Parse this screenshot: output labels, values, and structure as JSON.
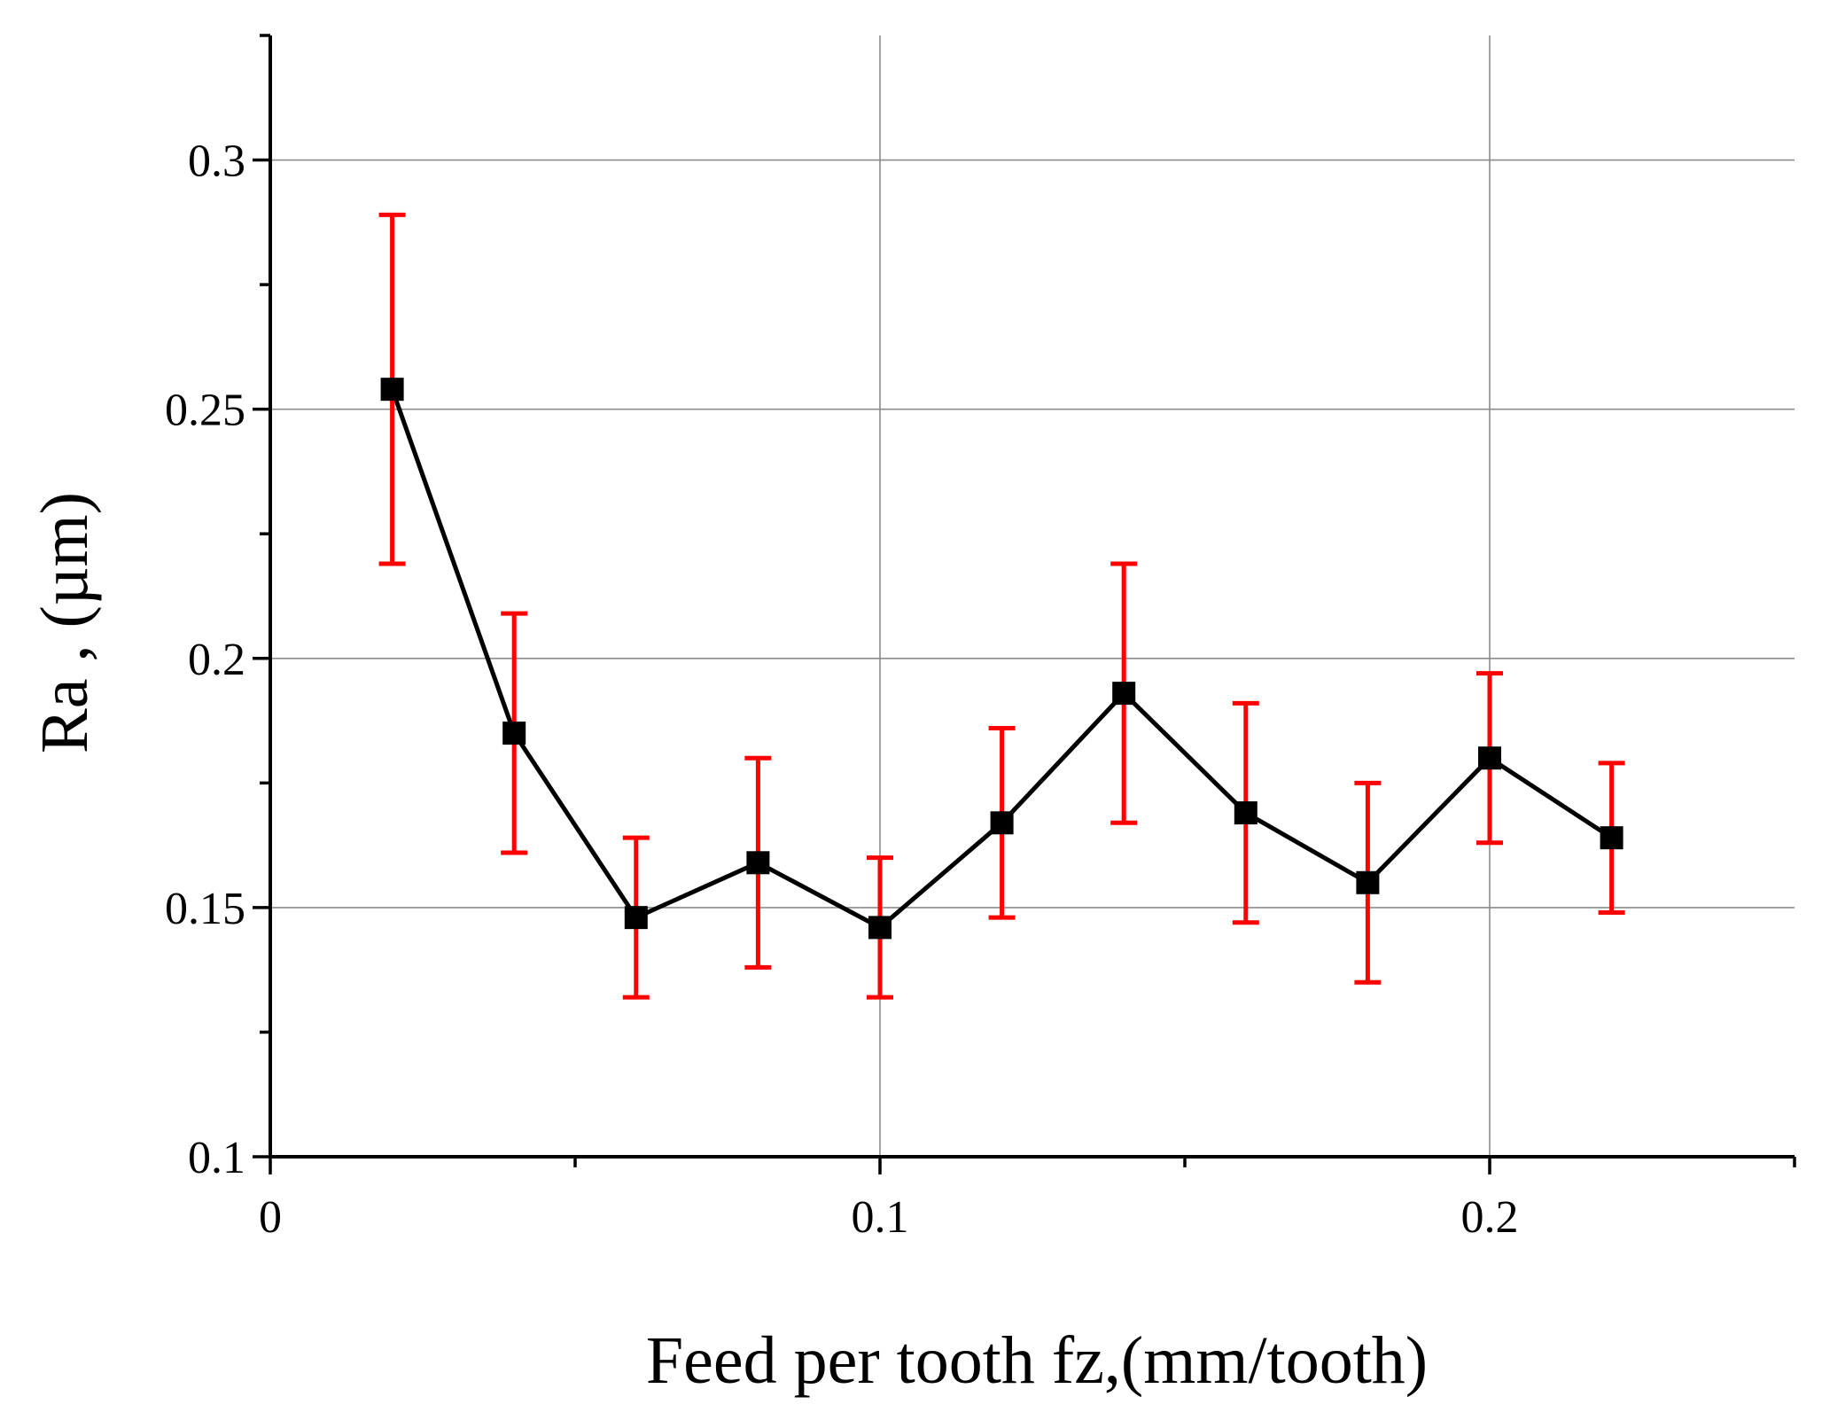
{
  "chart_data": {
    "type": "line",
    "title": "",
    "xlabel": "Feed per tooth fz,(mm/tooth)",
    "ylabel": "Ra , (µm)",
    "xlim": [
      0,
      0.25
    ],
    "ylim": [
      0.1,
      0.325
    ],
    "grid": true,
    "x_ticks": [
      0,
      0.1,
      0.2
    ],
    "x_tick_labels": [
      "0",
      "0.1",
      "0.2"
    ],
    "y_ticks": [
      0.1,
      0.15,
      0.2,
      0.25,
      0.3
    ],
    "y_tick_labels": [
      "0.1",
      "0.15",
      "0.2",
      "0.25",
      "0.3"
    ],
    "series": [
      {
        "name": "Ra",
        "color": "#000000",
        "marker": "square",
        "error_color": "#ff0000",
        "x": [
          0.02,
          0.04,
          0.06,
          0.08,
          0.1,
          0.12,
          0.14,
          0.16,
          0.18,
          0.2,
          0.22
        ],
        "y": [
          0.254,
          0.185,
          0.148,
          0.159,
          0.146,
          0.167,
          0.193,
          0.169,
          0.155,
          0.18,
          0.164
        ],
        "y_upper": [
          0.289,
          0.209,
          0.164,
          0.18,
          0.16,
          0.186,
          0.219,
          0.191,
          0.175,
          0.197,
          0.179
        ],
        "y_lower": [
          0.219,
          0.161,
          0.132,
          0.138,
          0.132,
          0.148,
          0.167,
          0.147,
          0.135,
          0.163,
          0.149
        ]
      }
    ]
  }
}
